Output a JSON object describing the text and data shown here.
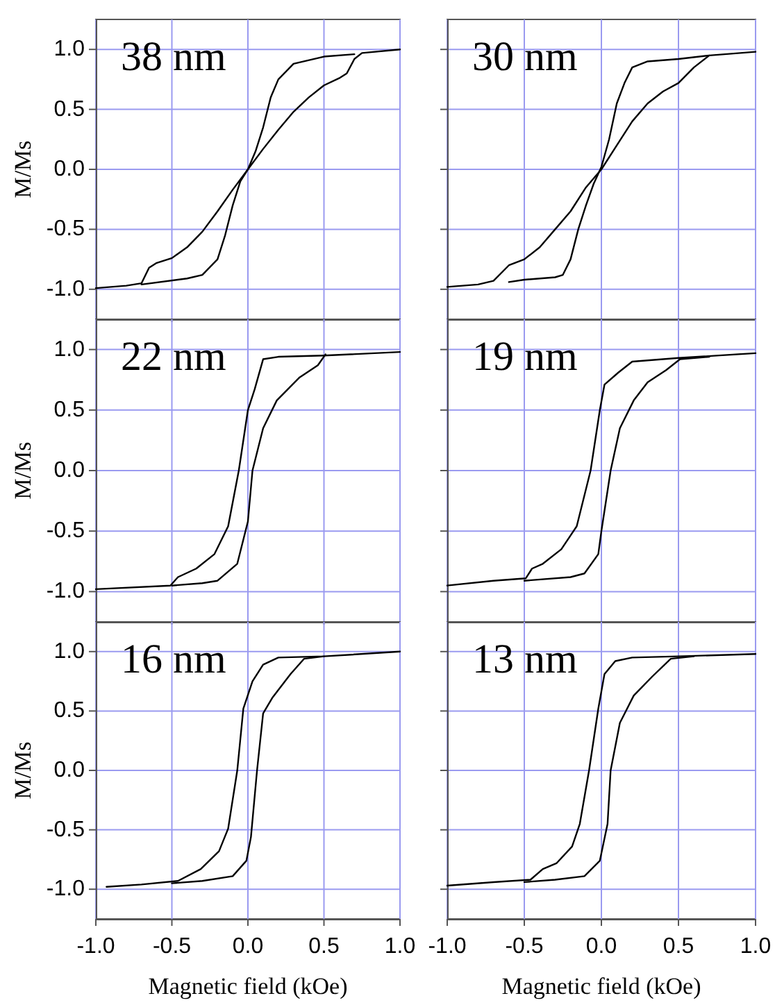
{
  "chart_data": [
    {
      "type": "line",
      "ylabel": "M/Ms",
      "annotations": [
        "38 nm"
      ],
      "xlim": [
        -1,
        1
      ],
      "xticks": [
        -1,
        -0.5,
        0,
        0.5,
        1
      ],
      "ylim": [
        -1.25,
        1.25
      ],
      "yticks": [
        {
          "value": -1,
          "label": "-1.0"
        },
        -0.5,
        {
          "value": 0,
          "label": "0.0"
        },
        0.5,
        {
          "value": 1,
          "label": "1.0"
        }
      ],
      "grid": true,
      "tick_labels": "y",
      "marker": "none",
      "line_style": "solid",
      "series": [
        {
          "color": "#000000",
          "x": [
            1,
            0.75,
            0.7,
            0.65,
            0.6,
            0.5,
            0.4,
            0.3,
            0.2,
            0.1,
            0,
            -0.1,
            -0.2,
            -0.3,
            -0.4,
            -0.5,
            -0.6,
            -0.65,
            -0.7,
            -0.8,
            -1
          ],
          "values": [
            1,
            0.97,
            0.92,
            0.8,
            0.76,
            0.7,
            0.6,
            0.48,
            0.33,
            0.17,
            0,
            -0.17,
            -0.35,
            -0.52,
            -0.65,
            -0.74,
            -0.78,
            -0.82,
            -0.95,
            -0.97,
            -0.99
          ]
        },
        {
          "color": "#000000",
          "x": [
            -0.7,
            -0.4,
            -0.3,
            -0.2,
            -0.15,
            -0.1,
            -0.05,
            0,
            0.05,
            0.1,
            0.15,
            0.2,
            0.3,
            0.5,
            0.7
          ],
          "values": [
            -0.96,
            -0.91,
            -0.88,
            -0.75,
            -0.55,
            -0.3,
            -0.1,
            0,
            0.15,
            0.35,
            0.6,
            0.75,
            0.88,
            0.94,
            0.96
          ]
        }
      ]
    },
    {
      "type": "line",
      "annotations": [
        "30 nm"
      ],
      "xlim": [
        -1,
        1
      ],
      "xticks": [
        -1,
        -0.5,
        0,
        0.5,
        1
      ],
      "ylim": [
        -1.25,
        1.25
      ],
      "yticks": [
        -1,
        -0.5,
        0,
        0.5,
        1
      ],
      "grid": true,
      "tick_labels": false,
      "marker": "none",
      "line_style": "solid",
      "series": [
        {
          "color": "#000000",
          "x": [
            1,
            0.7,
            0.6,
            0.5,
            0.4,
            0.3,
            0.2,
            0.1,
            0,
            -0.1,
            -0.2,
            -0.3,
            -0.4,
            -0.5,
            -0.6,
            -0.7,
            -0.8,
            -1
          ],
          "values": [
            0.98,
            0.95,
            0.85,
            0.72,
            0.65,
            0.55,
            0.4,
            0.2,
            0,
            -0.15,
            -0.35,
            -0.5,
            -0.65,
            -0.75,
            -0.8,
            -0.93,
            -0.96,
            -0.98
          ]
        },
        {
          "color": "#000000",
          "x": [
            -0.6,
            -0.5,
            -0.3,
            -0.25,
            -0.2,
            -0.15,
            -0.1,
            -0.05,
            0,
            0.05,
            0.1,
            0.15,
            0.2,
            0.3,
            0.5,
            0.7
          ],
          "values": [
            -0.94,
            -0.92,
            -0.9,
            -0.88,
            -0.75,
            -0.5,
            -0.3,
            -0.12,
            0.02,
            0.25,
            0.55,
            0.72,
            0.85,
            0.9,
            0.92,
            0.95
          ]
        }
      ]
    },
    {
      "type": "line",
      "ylabel": "M/Ms",
      "annotations": [
        "22 nm"
      ],
      "xlim": [
        -1,
        1
      ],
      "xticks": [
        -1,
        -0.5,
        0,
        0.5,
        1
      ],
      "ylim": [
        -1.25,
        1.25
      ],
      "yticks": [
        {
          "value": -1,
          "label": "-1.0"
        },
        -0.5,
        {
          "value": 0,
          "label": "0.0"
        },
        0.5,
        {
          "value": 1,
          "label": "1.0"
        }
      ],
      "grid": true,
      "tick_labels": "y",
      "marker": "none",
      "line_style": "solid",
      "series": [
        {
          "color": "#000000",
          "x": [
            1,
            0.5,
            0.2,
            0.1,
            0.044,
            0,
            -0.06,
            -0.13,
            -0.22,
            -0.34,
            -0.46,
            -0.51,
            -1
          ],
          "values": [
            0.98,
            0.95,
            0.94,
            0.92,
            0.67,
            0.5,
            0,
            -0.46,
            -0.69,
            -0.81,
            -0.88,
            -0.95,
            -0.98
          ]
        },
        {
          "color": "#000000",
          "x": [
            -0.5,
            -0.3,
            -0.2,
            -0.07,
            0,
            0.03,
            0.1,
            0.19,
            0.34,
            0.46,
            0.51
          ],
          "values": [
            -0.95,
            -0.93,
            -0.91,
            -0.77,
            -0.42,
            0,
            0.35,
            0.58,
            0.77,
            0.87,
            0.96
          ]
        }
      ]
    },
    {
      "type": "line",
      "annotations": [
        "19 nm"
      ],
      "xlim": [
        -1,
        1
      ],
      "xticks": [
        -1,
        -0.5,
        0,
        0.5,
        1
      ],
      "ylim": [
        -1.25,
        1.25
      ],
      "yticks": [
        -1,
        -0.5,
        0,
        0.5,
        1
      ],
      "grid": true,
      "tick_labels": false,
      "marker": "none",
      "line_style": "solid",
      "series": [
        {
          "color": "#000000",
          "x": [
            1,
            0.5,
            0.2,
            0.11,
            0.02,
            -0.01,
            -0.07,
            -0.16,
            -0.26,
            -0.38,
            -0.45,
            -0.49,
            -0.7,
            -1
          ],
          "values": [
            0.97,
            0.93,
            0.9,
            0.81,
            0.71,
            0.5,
            0,
            -0.46,
            -0.65,
            -0.77,
            -0.81,
            -0.89,
            -0.91,
            -0.95
          ]
        },
        {
          "color": "#000000",
          "x": [
            -0.5,
            -0.2,
            -0.11,
            -0.02,
            0,
            0.06,
            0.12,
            0.21,
            0.3,
            0.42,
            0.51,
            0.7
          ],
          "values": [
            -0.91,
            -0.88,
            -0.85,
            -0.69,
            -0.5,
            0,
            0.35,
            0.58,
            0.73,
            0.83,
            0.92,
            0.94
          ]
        }
      ]
    },
    {
      "type": "line",
      "ylabel": "M/Ms",
      "xlabel": "Magnetic field (kOe)",
      "annotations": [
        "16 nm"
      ],
      "xlim": [
        -1,
        1
      ],
      "xticks": [
        {
          "value": -1,
          "label": "-1.0"
        },
        -0.5,
        {
          "value": 0,
          "label": "0.0"
        },
        0.5,
        {
          "value": 1,
          "label": "1.0"
        }
      ],
      "ylim": [
        -1.25,
        1.25
      ],
      "yticks": [
        {
          "value": -1,
          "label": "-1.0"
        },
        -0.5,
        {
          "value": 0,
          "label": "0.0"
        },
        0.5,
        {
          "value": 1,
          "label": "1.0"
        }
      ],
      "grid": true,
      "marker": "none",
      "line_style": "solid",
      "series": [
        {
          "color": "#000000",
          "x": [
            1,
            0.5,
            0.2,
            0.1,
            0.03,
            -0.03,
            -0.07,
            -0.13,
            -0.19,
            -0.31,
            -0.46,
            -0.7,
            -0.93
          ],
          "values": [
            1,
            0.96,
            0.95,
            0.89,
            0.75,
            0.52,
            0,
            -0.49,
            -0.68,
            -0.83,
            -0.93,
            -0.96,
            -0.98
          ]
        },
        {
          "color": "#000000",
          "x": [
            -0.5,
            -0.3,
            -0.1,
            -0.01,
            0.02,
            0.06,
            0.1,
            0.16,
            0.28,
            0.37,
            0.5
          ],
          "values": [
            -0.95,
            -0.93,
            -0.89,
            -0.76,
            -0.56,
            0,
            0.48,
            0.61,
            0.81,
            0.94,
            0.96
          ]
        }
      ]
    },
    {
      "type": "line",
      "xlabel": "Magnetic field (kOe)",
      "annotations": [
        "13 nm"
      ],
      "xlim": [
        -1,
        1
      ],
      "xticks": [
        {
          "value": -1,
          "label": "-1.0"
        },
        -0.5,
        {
          "value": 0,
          "label": "0.0"
        },
        0.5,
        {
          "value": 1,
          "label": "1.0"
        }
      ],
      "ylim": [
        -1.25,
        1.25
      ],
      "yticks": [
        -1,
        -0.5,
        0,
        0.5,
        1
      ],
      "grid": true,
      "tick_labels": "x",
      "marker": "none",
      "line_style": "solid",
      "series": [
        {
          "color": "#000000",
          "x": [
            1,
            0.5,
            0.2,
            0.09,
            0.02,
            -0.02,
            -0.08,
            -0.14,
            -0.19,
            -0.29,
            -0.38,
            -0.46,
            -0.7,
            -1
          ],
          "values": [
            0.98,
            0.96,
            0.95,
            0.92,
            0.81,
            0.52,
            0,
            -0.45,
            -0.64,
            -0.78,
            -0.83,
            -0.92,
            -0.94,
            -0.97
          ]
        },
        {
          "color": "#000000",
          "x": [
            -0.5,
            -0.3,
            -0.11,
            -0.01,
            0.04,
            0.06,
            0.12,
            0.21,
            0.33,
            0.45,
            0.6
          ],
          "values": [
            -0.94,
            -0.92,
            -0.89,
            -0.76,
            -0.45,
            0,
            0.4,
            0.63,
            0.79,
            0.94,
            0.96
          ]
        }
      ]
    }
  ]
}
